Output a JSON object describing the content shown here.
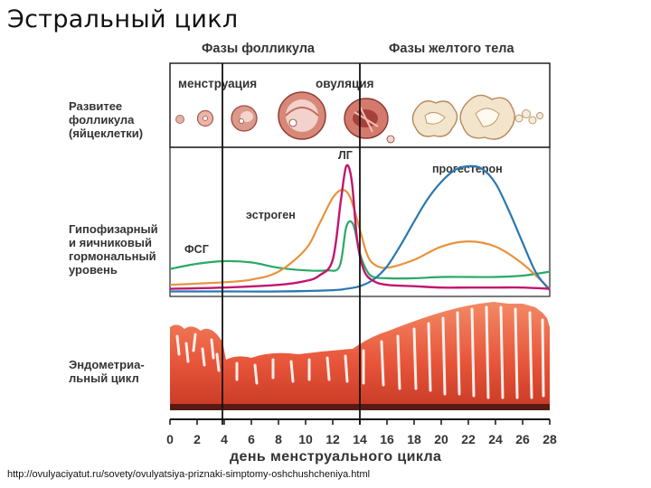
{
  "title": "Эстральный цикл",
  "phases": {
    "follicular": "Фазы фолликула",
    "luteal": "Фазы желтого тела"
  },
  "events": {
    "menstruation": "менструация",
    "ovulation": "овуляция"
  },
  "row_labels": {
    "follicle": [
      "Развитее",
      "фолликула",
      "(яйцеклетки)"
    ],
    "hormone": [
      "Гипофизарный",
      "и яичниковый",
      "гормональный",
      "уровень"
    ],
    "endometrium": [
      "Эндометриа-",
      "льный цикл"
    ]
  },
  "hormones": {
    "lh": "ЛГ",
    "progesterone": "прогестерон",
    "estrogen": "эстроген",
    "fsh": "ФСГ"
  },
  "colors": {
    "lh": "#c0176f",
    "progesterone": "#2a78b0",
    "estrogen": "#e8923c",
    "fsh": "#2aa866",
    "endometrium": "#e8563a"
  },
  "chart_data": {
    "type": "line",
    "x": [
      0,
      2,
      4,
      6,
      8,
      10,
      12,
      14,
      16,
      18,
      20,
      22,
      24,
      26,
      28
    ],
    "tick_labels": [
      "0",
      "2",
      "4",
      "6",
      "8",
      "10",
      "12",
      "14",
      "16",
      "18",
      "20",
      "22",
      "24",
      "26",
      "28"
    ],
    "xlabel": "день менструального цикла",
    "xlim": [
      0,
      28
    ],
    "ylim": [
      0,
      100
    ],
    "markers": [
      4,
      14
    ],
    "series": [
      {
        "name": "ЛГ",
        "key": "lh",
        "x": [
          0,
          4,
          8,
          10,
          11,
          12,
          12.6,
          13,
          13.4,
          13.8,
          14.3,
          15,
          16,
          18,
          20,
          22,
          24,
          26,
          28
        ],
        "y": [
          3,
          4,
          6,
          9,
          13,
          25,
          70,
          96,
          85,
          40,
          17,
          9,
          6,
          5,
          4,
          4,
          4,
          4,
          3
        ]
      },
      {
        "name": "ФСГ",
        "key": "fsh",
        "x": [
          0,
          2,
          4,
          6,
          8,
          10,
          11.5,
          12.5,
          13,
          13.5,
          14,
          14.5,
          15,
          16,
          18,
          20,
          22,
          24,
          26,
          28
        ],
        "y": [
          18,
          22,
          24,
          23,
          19,
          17,
          17,
          20,
          50,
          52,
          30,
          17,
          12,
          11,
          11,
          12,
          12,
          12,
          13,
          16
        ]
      },
      {
        "name": "эстроген",
        "key": "estrogen",
        "x": [
          0,
          2,
          4,
          6,
          8,
          10,
          11,
          12,
          12.7,
          13.3,
          14,
          14.5,
          15,
          16,
          18,
          20,
          22,
          24,
          26,
          28
        ],
        "y": [
          6,
          7,
          8,
          10,
          16,
          33,
          52,
          72,
          78,
          72,
          48,
          30,
          22,
          19,
          25,
          35,
          39,
          35,
          22,
          3
        ]
      },
      {
        "name": "прогестерон",
        "key": "progesterone",
        "x": [
          0,
          4,
          8,
          12,
          13,
          14,
          15,
          16,
          17,
          18,
          19,
          20,
          21,
          22,
          23,
          24,
          25,
          26,
          27,
          28
        ],
        "y": [
          1,
          1,
          1,
          2,
          3,
          5,
          10,
          20,
          36,
          54,
          71,
          84,
          93,
          96,
          94,
          83,
          62,
          38,
          15,
          2
        ]
      }
    ]
  }
}
